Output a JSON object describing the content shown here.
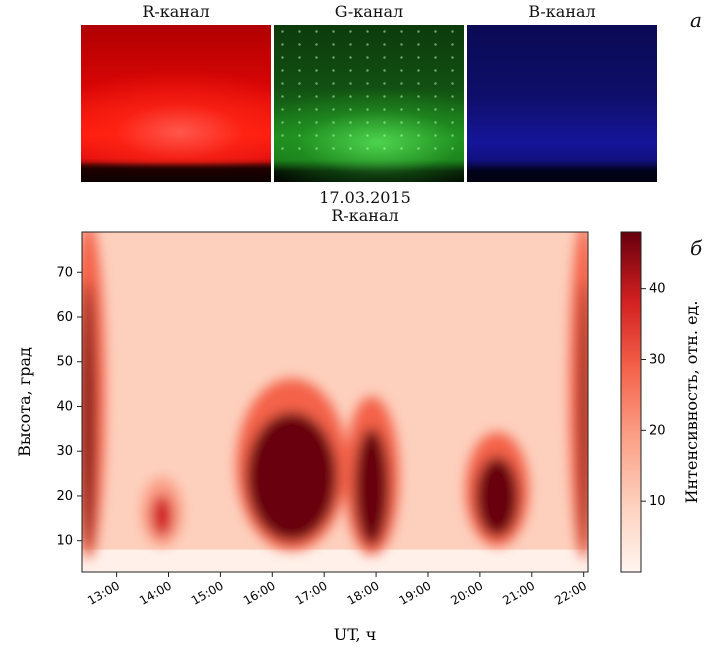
{
  "panel_a": {
    "letter": "a",
    "channels": [
      {
        "label": "R-канал",
        "color": "#ff1a0a"
      },
      {
        "label": "G-канал",
        "color": "#1fa01f"
      },
      {
        "label": "B-канал",
        "color": "#1a1aa8"
      }
    ]
  },
  "panel_b": {
    "letter": "б",
    "title_date": "17.03.2015",
    "title_channel": "R-канал"
  },
  "chart_data": {
    "type": "heatmap",
    "xlabel": "UT, ч",
    "ylabel": "Высота, град",
    "colorbar_label": "Интенсивность, отн. ед.",
    "x_ticks": [
      "13:00",
      "14:00",
      "15:00",
      "16:00",
      "17:00",
      "18:00",
      "19:00",
      "20:00",
      "21:00",
      "22:00"
    ],
    "x_range": [
      "12:20",
      "22:05"
    ],
    "y_ticks": [
      10,
      20,
      30,
      40,
      50,
      60,
      70
    ],
    "y_range": [
      3,
      79
    ],
    "colorbar_ticks": [
      10,
      20,
      30,
      40
    ],
    "colorbar_range": [
      0,
      48
    ],
    "colormap": [
      "#fff5f0",
      "#fdd0bd",
      "#fb9f86",
      "#f4624a",
      "#d11f20",
      "#67000d"
    ],
    "background_intensity": 8,
    "bright_regions": [
      {
        "time_start": "12:20",
        "time_end": "12:35",
        "alt_min": 8,
        "alt_max": 79,
        "peak": 45
      },
      {
        "time_start": "13:40",
        "time_end": "14:05",
        "alt_min": 11,
        "alt_max": 22,
        "peak": 38
      },
      {
        "time_start": "15:30",
        "time_end": "17:15",
        "alt_min": 10,
        "alt_max": 44,
        "peak": 48
      },
      {
        "time_start": "17:35",
        "time_end": "18:15",
        "alt_min": 9,
        "alt_max": 40,
        "peak": 46
      },
      {
        "time_start": "19:55",
        "time_end": "20:45",
        "alt_min": 11,
        "alt_max": 32,
        "peak": 45
      },
      {
        "time_start": "21:55",
        "time_end": "22:05",
        "alt_min": 8,
        "alt_max": 79,
        "peak": 46
      }
    ]
  }
}
